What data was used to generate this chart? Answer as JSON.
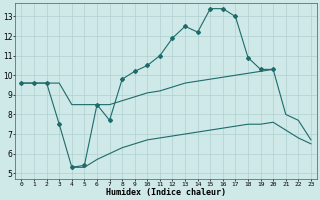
{
  "xlabel": "Humidex (Indice chaleur)",
  "background_color": "#cfe8e8",
  "grid_color": "#b0d0d0",
  "line_color": "#1e6b6b",
  "xlim": [
    -0.5,
    23.5
  ],
  "ylim": [
    4.7,
    13.7
  ],
  "xticks": [
    0,
    1,
    2,
    3,
    4,
    5,
    6,
    7,
    8,
    9,
    10,
    11,
    12,
    13,
    14,
    15,
    16,
    17,
    18,
    19,
    20,
    21,
    22,
    23
  ],
  "yticks": [
    5,
    6,
    7,
    8,
    9,
    10,
    11,
    12,
    13
  ],
  "line1_x": [
    0,
    1,
    2,
    3,
    4,
    5,
    6,
    7,
    8,
    9,
    10,
    11,
    12,
    13,
    14,
    15,
    16,
    17,
    18,
    19,
    20
  ],
  "line1_y": [
    9.6,
    9.6,
    9.6,
    7.5,
    5.3,
    5.4,
    8.5,
    7.7,
    9.8,
    10.2,
    10.5,
    11.0,
    11.9,
    12.5,
    12.2,
    13.4,
    13.4,
    13.0,
    10.9,
    10.3,
    10.3
  ],
  "line2_x": [
    0,
    1,
    2,
    3,
    4,
    5,
    6,
    7,
    8,
    9,
    10,
    11,
    12,
    13,
    14,
    15,
    16,
    17,
    18,
    19,
    20,
    21,
    22,
    23
  ],
  "line2_y": [
    9.6,
    9.6,
    9.6,
    9.6,
    8.5,
    8.5,
    8.5,
    8.5,
    8.7,
    8.9,
    9.1,
    9.2,
    9.4,
    9.6,
    9.7,
    9.8,
    9.9,
    10.0,
    10.1,
    10.2,
    10.3,
    8.0,
    7.7,
    6.7
  ],
  "line3_x": [
    4,
    5,
    6,
    7,
    8,
    9,
    10,
    11,
    12,
    13,
    14,
    15,
    16,
    17,
    18,
    19,
    20,
    21,
    22,
    23
  ],
  "line3_y": [
    5.3,
    5.3,
    5.7,
    6.0,
    6.3,
    6.5,
    6.7,
    6.8,
    6.9,
    7.0,
    7.1,
    7.2,
    7.3,
    7.4,
    7.5,
    7.5,
    7.6,
    7.2,
    6.8,
    6.5
  ]
}
